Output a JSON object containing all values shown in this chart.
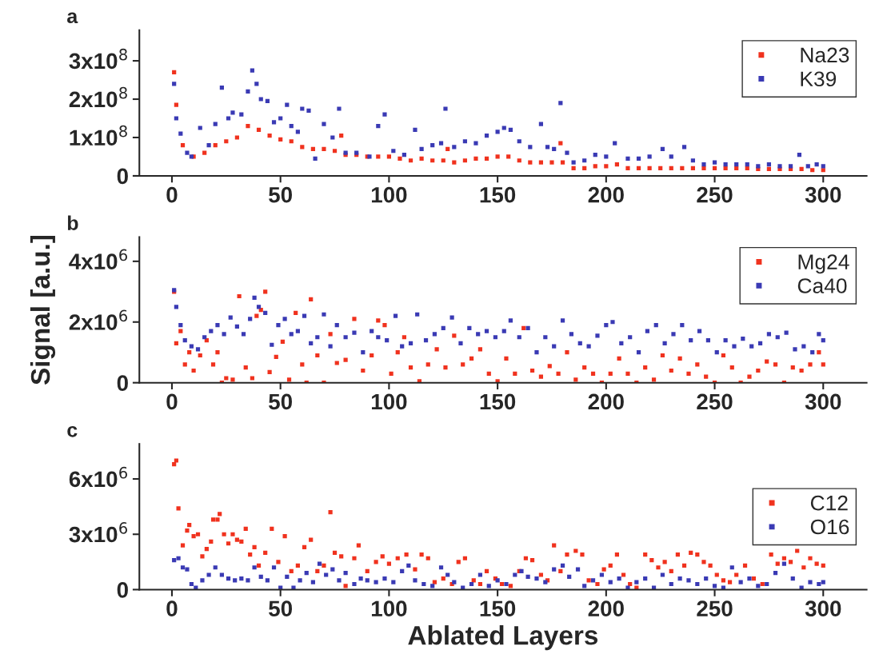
{
  "chart_data": [
    {
      "type": "scatter",
      "annotations": [
        "a"
      ],
      "xlim": [
        -15,
        320
      ],
      "ylim": [
        0,
        380000000.0
      ],
      "xticks": [
        0,
        50,
        100,
        150,
        200,
        250,
        300
      ],
      "yticks": [
        0,
        {
          "value": 100000000.0,
          "label": "1x10$^{8}$"
        },
        {
          "value": 200000000.0,
          "label": "2x10$^{8}$"
        },
        {
          "value": 300000000.0,
          "label": "3x10$^{8}$"
        }
      ],
      "marker": "square",
      "legend": "top right",
      "grid": false,
      "series": [
        {
          "name": "Na23",
          "color": "#f0321e",
          "x": [
            1,
            2,
            5,
            10,
            15,
            20,
            25,
            30,
            35,
            40,
            45,
            50,
            55,
            60,
            65,
            70,
            75,
            78,
            80,
            85,
            90,
            95,
            100,
            105,
            110,
            115,
            120,
            125,
            127,
            130,
            135,
            140,
            145,
            150,
            155,
            160,
            165,
            170,
            175,
            179,
            180,
            185,
            190,
            195,
            200,
            205,
            210,
            215,
            220,
            225,
            230,
            235,
            240,
            245,
            250,
            255,
            260,
            265,
            270,
            275,
            280,
            285,
            290,
            295,
            300
          ],
          "values": [
            270000000.0,
            185000000.0,
            80000000.0,
            50000000.0,
            60000000.0,
            80000000.0,
            90000000.0,
            100000000.0,
            130000000.0,
            120000000.0,
            105000000.0,
            95000000.0,
            90000000.0,
            75000000.0,
            70000000.0,
            70000000.0,
            65000000.0,
            105000000.0,
            55000000.0,
            55000000.0,
            50000000.0,
            50000000.0,
            50000000.0,
            45000000.0,
            40000000.0,
            45000000.0,
            40000000.0,
            40000000.0,
            70000000.0,
            35000000.0,
            40000000.0,
            45000000.0,
            45000000.0,
            50000000.0,
            50000000.0,
            40000000.0,
            35000000.0,
            35000000.0,
            35000000.0,
            85000000.0,
            35000000.0,
            20000000.0,
            20000000.0,
            25000000.0,
            25000000.0,
            30000000.0,
            20000000.0,
            20000000.0,
            20000000.0,
            20000000.0,
            20000000.0,
            20000000.0,
            20000000.0,
            20000000.0,
            20000000.0,
            20000000.0,
            20000000.0,
            20000000.0,
            18000000.0,
            18000000.0,
            18000000.0,
            18000000.0,
            18000000.0,
            15000000.0,
            15000000.0
          ]
        },
        {
          "name": "K39",
          "color": "#3a3ab4",
          "x": [
            1,
            2,
            4,
            7,
            9,
            13,
            17,
            20,
            23,
            26,
            28,
            32,
            35,
            37,
            39,
            41,
            44,
            47,
            50,
            53,
            55,
            58,
            60,
            63,
            66,
            70,
            74,
            77,
            80,
            85,
            91,
            95,
            98,
            102,
            107,
            112,
            115,
            120,
            124,
            126,
            130,
            135,
            140,
            145,
            150,
            153,
            156,
            160,
            165,
            170,
            173,
            176,
            179,
            182,
            185,
            190,
            195,
            200,
            204,
            210,
            215,
            220,
            226,
            230,
            236,
            240,
            245,
            250,
            255,
            260,
            265,
            270,
            275,
            280,
            285,
            289,
            293,
            297,
            300
          ],
          "values": [
            240000000.0,
            150000000.0,
            110000000.0,
            60000000.0,
            50000000.0,
            125000000.0,
            80000000.0,
            135000000.0,
            230000000.0,
            150000000.0,
            165000000.0,
            160000000.0,
            220000000.0,
            275000000.0,
            240000000.0,
            200000000.0,
            195000000.0,
            140000000.0,
            150000000.0,
            185000000.0,
            130000000.0,
            115000000.0,
            175000000.0,
            170000000.0,
            45000000.0,
            135000000.0,
            100000000.0,
            175000000.0,
            60000000.0,
            60000000.0,
            50000000.0,
            130000000.0,
            160000000.0,
            65000000.0,
            55000000.0,
            120000000.0,
            70000000.0,
            80000000.0,
            85000000.0,
            175000000.0,
            75000000.0,
            90000000.0,
            85000000.0,
            105000000.0,
            115000000.0,
            125000000.0,
            120000000.0,
            90000000.0,
            75000000.0,
            135000000.0,
            75000000.0,
            70000000.0,
            190000000.0,
            60000000.0,
            35000000.0,
            40000000.0,
            55000000.0,
            50000000.0,
            85000000.0,
            45000000.0,
            45000000.0,
            50000000.0,
            70000000.0,
            50000000.0,
            75000000.0,
            40000000.0,
            30000000.0,
            35000000.0,
            30000000.0,
            30000000.0,
            30000000.0,
            25000000.0,
            30000000.0,
            25000000.0,
            25000000.0,
            55000000.0,
            25000000.0,
            30000000.0,
            25000000.0
          ]
        }
      ]
    },
    {
      "type": "scatter",
      "annotations": [
        "b"
      ],
      "ylabel": "Signal [a.u.]",
      "xlim": [
        -15,
        320
      ],
      "ylim": [
        0,
        4800000.0
      ],
      "xticks": [
        0,
        50,
        100,
        150,
        200,
        250,
        300
      ],
      "yticks": [
        0,
        {
          "value": 2000000.0,
          "label": "2x10$^{6}$"
        },
        {
          "value": 4000000.0,
          "label": "4x10$^{6}$"
        }
      ],
      "marker": "square",
      "legend": "top right",
      "grid": false,
      "series": [
        {
          "name": "Mg24",
          "color": "#f0321e",
          "x": [
            1,
            2,
            4,
            6,
            8,
            10,
            13,
            16,
            19,
            21,
            23,
            25,
            28,
            31,
            34,
            37,
            39,
            41,
            43,
            45,
            48,
            51,
            54,
            57,
            60,
            62,
            64,
            67,
            70,
            73,
            76,
            80,
            84,
            88,
            92,
            95,
            98,
            101,
            104,
            107,
            110,
            114,
            118,
            122,
            126,
            130,
            134,
            138,
            142,
            146,
            150,
            154,
            158,
            162,
            166,
            170,
            174,
            178,
            182,
            186,
            190,
            194,
            198,
            202,
            206,
            210,
            214,
            218,
            222,
            226,
            230,
            234,
            238,
            242,
            246,
            250,
            254,
            258,
            262,
            266,
            270,
            274,
            278,
            282,
            286,
            290,
            294,
            298,
            300
          ],
          "values": [
            3000000.0,
            1300000.0,
            1700000.0,
            600000.0,
            1000000.0,
            400000.0,
            900000.0,
            1400000.0,
            600000.0,
            1000000.0,
            0.0,
            150000.0,
            100000.0,
            2850000.0,
            500000.0,
            150000.0,
            2200000.0,
            2400000.0,
            3000000.0,
            350000.0,
            850000.0,
            1350000.0,
            100000.0,
            2300000.0,
            600000.0,
            0.0,
            2750000.0,
            900000.0,
            0.0,
            1600000.0,
            650000.0,
            750000.0,
            2100000.0,
            400000.0,
            900000.0,
            2050000.0,
            1900000.0,
            300000.0,
            1000000.0,
            1500000.0,
            500000.0,
            50000.0,
            600000.0,
            1100000.0,
            500000.0,
            1550000.0,
            600000.0,
            800000.0,
            1100000.0,
            300000.0,
            50000.0,
            800000.0,
            300000.0,
            1800000.0,
            400000.0,
            200000.0,
            550000.0,
            300000.0,
            1000000.0,
            100000.0,
            500000.0,
            300000.0,
            0.0,
            300000.0,
            800000.0,
            300000.0,
            0.0,
            500000.0,
            100000.0,
            900000.0,
            400000.0,
            800000.0,
            300000.0,
            600000.0,
            200000.0,
            0.0,
            900000.0,
            500000.0,
            0.0,
            200000.0,
            400000.0,
            700000.0,
            600000.0,
            0.0,
            500000.0,
            400000.0,
            600000.0,
            1000000.0,
            600000.0
          ]
        },
        {
          "name": "Ca40",
          "color": "#3a3ab4",
          "x": [
            1,
            2,
            4,
            6,
            9,
            12,
            15,
            18,
            21,
            24,
            27,
            30,
            33,
            36,
            38,
            40,
            43,
            46,
            49,
            52,
            55,
            58,
            61,
            64,
            67,
            70,
            73,
            76,
            80,
            84,
            88,
            92,
            95,
            99,
            103,
            106,
            110,
            113,
            117,
            121,
            125,
            129,
            133,
            137,
            141,
            145,
            149,
            153,
            156,
            160,
            164,
            168,
            172,
            176,
            180,
            184,
            188,
            192,
            196,
            200,
            203,
            207,
            211,
            215,
            219,
            223,
            227,
            231,
            235,
            239,
            243,
            247,
            251,
            255,
            259,
            263,
            267,
            271,
            275,
            279,
            283,
            287,
            291,
            295,
            298,
            300
          ],
          "values": [
            3050000.0,
            2500000.0,
            1900000.0,
            1400000.0,
            1200000.0,
            1100000.0,
            1500000.0,
            1700000.0,
            1900000.0,
            1600000.0,
            2150000.0,
            1850000.0,
            1600000.0,
            2100000.0,
            2800000.0,
            2500000.0,
            2300000.0,
            1250000.0,
            1900000.0,
            2100000.0,
            1600000.0,
            1700000.0,
            2200000.0,
            1300000.0,
            1500000.0,
            2250000.0,
            1200000.0,
            1900000.0,
            1500000.0,
            1650000.0,
            1000000.0,
            1700000.0,
            1500000.0,
            1400000.0,
            2200000.0,
            1200000.0,
            1300000.0,
            2250000.0,
            1400000.0,
            1600000.0,
            1800000.0,
            2150000.0,
            1300000.0,
            1800000.0,
            1600000.0,
            1700000.0,
            1500000.0,
            1700000.0,
            2050000.0,
            1500000.0,
            1800000.0,
            1000000.0,
            1500000.0,
            1200000.0,
            2050000.0,
            1600000.0,
            1300000.0,
            1200000.0,
            1550000.0,
            1900000.0,
            2000000.0,
            1300000.0,
            1500000.0,
            1000000.0,
            1700000.0,
            1900000.0,
            1300000.0,
            1600000.0,
            1900000.0,
            1400000.0,
            1700000.0,
            1400000.0,
            1000000.0,
            1400000.0,
            1200000.0,
            1450000.0,
            1200000.0,
            1300000.0,
            1600000.0,
            1500000.0,
            1650000.0,
            1100000.0,
            1200000.0,
            1000000.0,
            1600000.0,
            1400000.0
          ]
        }
      ]
    },
    {
      "type": "scatter",
      "annotations": [
        "c"
      ],
      "xlabel": "Ablated Layers",
      "xlim": [
        -15,
        320
      ],
      "ylim": [
        0,
        7900000.0
      ],
      "xticks": [
        0,
        50,
        100,
        150,
        200,
        250,
        300
      ],
      "yticks": [
        0,
        {
          "value": 3000000.0,
          "label": "3x10$^{6}$"
        },
        {
          "value": 6000000.0,
          "label": "6x10$^{6}$"
        }
      ],
      "marker": "square",
      "legend": "right",
      "grid": false,
      "series": [
        {
          "name": "C12",
          "color": "#f0321e",
          "x": [
            1,
            2,
            3,
            5,
            7,
            8,
            10,
            12,
            14,
            16,
            18,
            19,
            21,
            22,
            24,
            26,
            28,
            30,
            32,
            34,
            36,
            38,
            40,
            43,
            46,
            49,
            52,
            55,
            58,
            61,
            64,
            67,
            70,
            73,
            75,
            78,
            80,
            84,
            86,
            90,
            94,
            97,
            100,
            104,
            108,
            112,
            115,
            118,
            121,
            125,
            129,
            132,
            135,
            139,
            142,
            145,
            149,
            152,
            156,
            160,
            163,
            166,
            170,
            173,
            176,
            179,
            182,
            186,
            189,
            192,
            196,
            199,
            202,
            205,
            208,
            211,
            214,
            218,
            221,
            224,
            227,
            230,
            233,
            236,
            239,
            242,
            245,
            248,
            251,
            254,
            257,
            260,
            264,
            268,
            272,
            276,
            279,
            282,
            285,
            288,
            291,
            294,
            297,
            300
          ],
          "values": [
            6800000.0,
            7000000.0,
            4400000.0,
            2400000.0,
            3200000.0,
            3500000.0,
            2900000.0,
            3000000.0,
            1800000.0,
            2200000.0,
            2600000.0,
            3800000.0,
            3800000.0,
            4100000.0,
            3000000.0,
            2500000.0,
            3000000.0,
            2700000.0,
            2600000.0,
            3300000.0,
            1900000.0,
            2300000.0,
            1300000.0,
            2000000.0,
            3300000.0,
            1500000.0,
            2900000.0,
            1000000.0,
            1300000.0,
            2300000.0,
            2700000.0,
            1000000.0,
            1300000.0,
            4200000.0,
            2000000.0,
            1800000.0,
            200000.0,
            1700000.0,
            2400000.0,
            1000000.0,
            1500000.0,
            1800000.0,
            1400000.0,
            1700000.0,
            1900000.0,
            1100000.0,
            1900000.0,
            1700000.0,
            400000.0,
            600000.0,
            300000.0,
            1500000.0,
            1700000.0,
            500000.0,
            300000.0,
            1000000.0,
            600000.0,
            300000.0,
            200000.0,
            1000000.0,
            1700000.0,
            1600000.0,
            800000.0,
            500000.0,
            2400000.0,
            1000000.0,
            1900000.0,
            2100000.0,
            1900000.0,
            500000.0,
            300000.0,
            1100000.0,
            1300000.0,
            1900000.0,
            800000.0,
            300000.0,
            100000.0,
            1900000.0,
            1600000.0,
            1200000.0,
            1500000.0,
            1000000.0,
            1900000.0,
            1300000.0,
            2000000.0,
            1900000.0,
            1500000.0,
            1300000.0,
            800000.0,
            500000.0,
            400000.0,
            800000.0,
            1300000.0,
            600000.0,
            300000.0,
            1900000.0,
            1400000.0,
            1700000.0,
            1500000.0,
            2100000.0,
            1200000.0,
            1700000.0,
            1400000.0,
            1300000.0
          ]
        },
        {
          "name": "O16",
          "color": "#3a3ab4",
          "x": [
            1,
            3,
            5,
            7,
            9,
            11,
            14,
            17,
            20,
            23,
            26,
            29,
            32,
            35,
            38,
            41,
            44,
            47,
            50,
            53,
            56,
            59,
            62,
            65,
            68,
            71,
            74,
            77,
            80,
            84,
            87,
            90,
            94,
            98,
            102,
            106,
            109,
            112,
            116,
            120,
            124,
            127,
            130,
            134,
            138,
            142,
            146,
            150,
            154,
            158,
            161,
            164,
            168,
            172,
            176,
            180,
            183,
            187,
            190,
            194,
            198,
            202,
            206,
            210,
            214,
            218,
            222,
            226,
            230,
            234,
            238,
            242,
            246,
            250,
            254,
            258,
            262,
            266,
            270,
            274,
            278,
            282,
            286,
            290,
            294,
            298,
            300
          ],
          "values": [
            1600000.0,
            1700000.0,
            1200000.0,
            1100000.0,
            300000.0,
            100000.0,
            500000.0,
            800000.0,
            1200000.0,
            800000.0,
            600000.0,
            500000.0,
            600000.0,
            500000.0,
            1200000.0,
            700000.0,
            500000.0,
            1200000.0,
            100000.0,
            700000.0,
            100000.0,
            500000.0,
            900000.0,
            400000.0,
            1400000.0,
            800000.0,
            1100000.0,
            500000.0,
            900000.0,
            300000.0,
            600000.0,
            500000.0,
            400000.0,
            600000.0,
            400000.0,
            1000000.0,
            1300000.0,
            500000.0,
            300000.0,
            200000.0,
            1200000.0,
            800000.0,
            400000.0,
            100000.0,
            300000.0,
            800000.0,
            200000.0,
            500000.0,
            300000.0,
            800000.0,
            1000000.0,
            700000.0,
            600000.0,
            400000.0,
            1100000.0,
            1300000.0,
            700000.0,
            1100000.0,
            200000.0,
            500000.0,
            800000.0,
            400000.0,
            600000.0,
            100000.0,
            400000.0,
            600000.0,
            100000.0,
            800000.0,
            300000.0,
            600000.0,
            500000.0,
            300000.0,
            600000.0,
            200000.0,
            100000.0,
            1200000.0,
            400000.0,
            600000.0,
            200000.0,
            300000.0,
            900000.0,
            1400000.0,
            600000.0,
            100000.0,
            400000.0,
            300000.0,
            400000.0
          ]
        }
      ]
    }
  ]
}
